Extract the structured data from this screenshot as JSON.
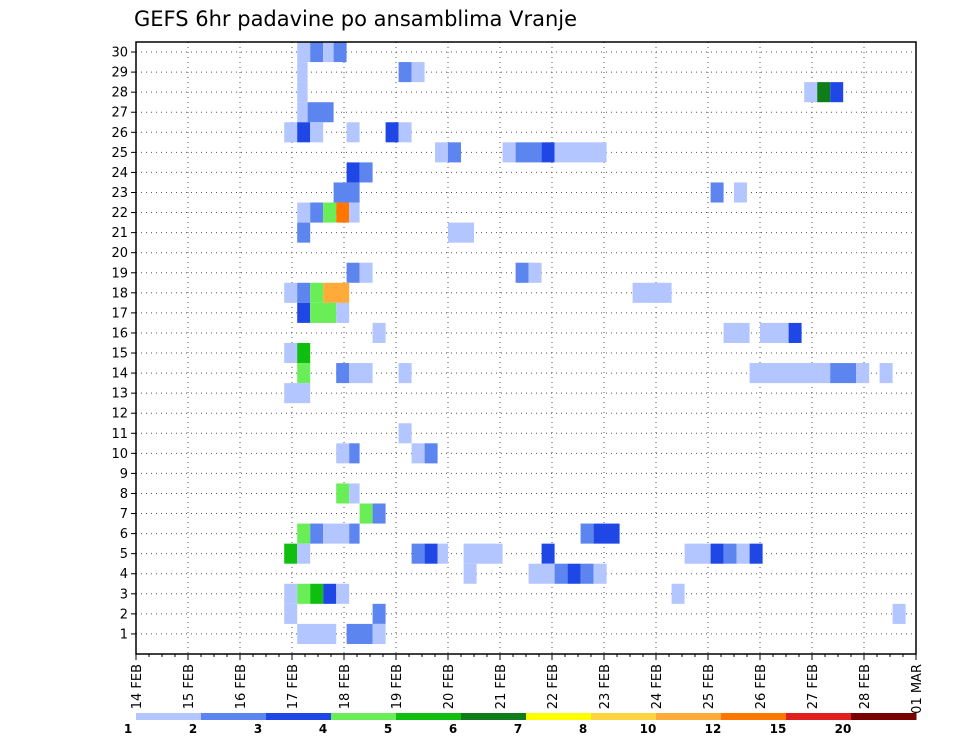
{
  "chart_data": {
    "type": "heatmap",
    "title": "GEFS 6hr padavine po ansamblima Vranje",
    "x_tick_labels": [
      "14 FEB",
      "15 FEB",
      "16 FEB",
      "17 FEB",
      "18 FEB",
      "19 FEB",
      "20 FEB",
      "21 FEB",
      "22 FEB",
      "23 FEB",
      "24 FEB",
      "25 FEB",
      "26 FEB",
      "27 FEB",
      "28 FEB",
      "01 MAR"
    ],
    "y_tick_labels": [
      "1",
      "2",
      "3",
      "4",
      "5",
      "6",
      "7",
      "8",
      "9",
      "10",
      "11",
      "12",
      "13",
      "14",
      "15",
      "16",
      "17",
      "18",
      "19",
      "20",
      "21",
      "22",
      "23",
      "24",
      "25",
      "26",
      "27",
      "28",
      "29",
      "30"
    ],
    "x_range_days": [
      0,
      15
    ],
    "time_step_hours": 6,
    "y_range": [
      0,
      30
    ],
    "grid": "dotted",
    "legend": {
      "position": "bottom",
      "labels": [
        "1",
        "2",
        "3",
        "4",
        "5",
        "6",
        "7",
        "8",
        "10",
        "12",
        "15",
        "20"
      ],
      "colors": [
        "#b3c6ff",
        "#5c85f0",
        "#1f47e6",
        "#6aee57",
        "#0fbe0f",
        "#0e7d1a",
        "#ffff00",
        "#ffd43f",
        "#ffab3a",
        "#ff7700",
        "#e21f1f",
        "#7a0000"
      ]
    },
    "cells": [
      {
        "y": 30,
        "x": [
          3.1,
          3.35
        ],
        "v": 1
      },
      {
        "y": 30,
        "x": [
          3.35,
          3.6
        ],
        "v": 2
      },
      {
        "y": 30,
        "x": [
          3.6,
          3.8
        ],
        "v": 1
      },
      {
        "y": 30,
        "x": [
          3.8,
          4.05
        ],
        "v": 2
      },
      {
        "y": 29,
        "x": [
          3.1,
          3.3
        ],
        "v": 1
      },
      {
        "y": 29,
        "x": [
          5.05,
          5.3
        ],
        "v": 2
      },
      {
        "y": 29,
        "x": [
          5.3,
          5.55
        ],
        "v": 1
      },
      {
        "y": 28,
        "x": [
          3.1,
          3.3
        ],
        "v": 1
      },
      {
        "y": 28,
        "x": [
          12.85,
          13.1
        ],
        "v": 1
      },
      {
        "y": 28,
        "x": [
          13.1,
          13.35
        ],
        "v": 6
      },
      {
        "y": 28,
        "x": [
          13.35,
          13.6
        ],
        "v": 3
      },
      {
        "y": 27,
        "x": [
          3.1,
          3.3
        ],
        "v": 1
      },
      {
        "y": 27,
        "x": [
          3.3,
          3.8
        ],
        "v": 2
      },
      {
        "y": 26,
        "x": [
          2.85,
          3.1
        ],
        "v": 1
      },
      {
        "y": 26,
        "x": [
          3.1,
          3.35
        ],
        "v": 3
      },
      {
        "y": 26,
        "x": [
          3.35,
          3.6
        ],
        "v": 1
      },
      {
        "y": 26,
        "x": [
          4.05,
          4.3
        ],
        "v": 1
      },
      {
        "y": 26,
        "x": [
          4.8,
          5.05
        ],
        "v": 3
      },
      {
        "y": 26,
        "x": [
          5.05,
          5.3
        ],
        "v": 1
      },
      {
        "y": 25,
        "x": [
          5.75,
          6.0
        ],
        "v": 1
      },
      {
        "y": 25,
        "x": [
          6.0,
          6.25
        ],
        "v": 2
      },
      {
        "y": 25,
        "x": [
          7.05,
          7.3
        ],
        "v": 1
      },
      {
        "y": 25,
        "x": [
          7.3,
          7.8
        ],
        "v": 2
      },
      {
        "y": 25,
        "x": [
          7.8,
          8.05
        ],
        "v": 3
      },
      {
        "y": 25,
        "x": [
          8.05,
          9.05
        ],
        "v": 1
      },
      {
        "y": 24,
        "x": [
          4.05,
          4.3
        ],
        "v": 3
      },
      {
        "y": 24,
        "x": [
          4.3,
          4.55
        ],
        "v": 2
      },
      {
        "y": 23,
        "x": [
          3.8,
          4.3
        ],
        "v": 2
      },
      {
        "y": 23,
        "x": [
          11.05,
          11.3
        ],
        "v": 2
      },
      {
        "y": 23,
        "x": [
          11.5,
          11.75
        ],
        "v": 1
      },
      {
        "y": 22,
        "x": [
          3.1,
          3.35
        ],
        "v": 1
      },
      {
        "y": 22,
        "x": [
          3.35,
          3.6
        ],
        "v": 2
      },
      {
        "y": 22,
        "x": [
          3.6,
          3.85
        ],
        "v": 4
      },
      {
        "y": 22,
        "x": [
          3.85,
          4.1
        ],
        "v": 12
      },
      {
        "y": 22,
        "x": [
          4.1,
          4.3
        ],
        "v": 1
      },
      {
        "y": 21,
        "x": [
          3.1,
          3.35
        ],
        "v": 2
      },
      {
        "y": 21,
        "x": [
          6.0,
          6.5
        ],
        "v": 1
      },
      {
        "y": 19,
        "x": [
          4.05,
          4.3
        ],
        "v": 2
      },
      {
        "y": 19,
        "x": [
          4.3,
          4.55
        ],
        "v": 1
      },
      {
        "y": 19,
        "x": [
          7.3,
          7.55
        ],
        "v": 2
      },
      {
        "y": 19,
        "x": [
          7.55,
          7.8
        ],
        "v": 1
      },
      {
        "y": 18,
        "x": [
          2.85,
          3.1
        ],
        "v": 1
      },
      {
        "y": 18,
        "x": [
          3.1,
          3.35
        ],
        "v": 2
      },
      {
        "y": 18,
        "x": [
          3.35,
          3.6
        ],
        "v": 4
      },
      {
        "y": 18,
        "x": [
          3.6,
          4.1
        ],
        "v": 10
      },
      {
        "y": 18,
        "x": [
          9.55,
          10.3
        ],
        "v": 1
      },
      {
        "y": 17,
        "x": [
          3.1,
          3.35
        ],
        "v": 3
      },
      {
        "y": 17,
        "x": [
          3.35,
          3.85
        ],
        "v": 4
      },
      {
        "y": 17,
        "x": [
          3.85,
          4.1
        ],
        "v": 1
      },
      {
        "y": 16,
        "x": [
          4.55,
          4.8
        ],
        "v": 1
      },
      {
        "y": 16,
        "x": [
          11.3,
          11.8
        ],
        "v": 1
      },
      {
        "y": 16,
        "x": [
          12.0,
          12.55
        ],
        "v": 1
      },
      {
        "y": 16,
        "x": [
          12.55,
          12.8
        ],
        "v": 3
      },
      {
        "y": 15,
        "x": [
          2.85,
          3.1
        ],
        "v": 1
      },
      {
        "y": 15,
        "x": [
          3.1,
          3.35
        ],
        "v": 5
      },
      {
        "y": 14,
        "x": [
          3.1,
          3.35
        ],
        "v": 4
      },
      {
        "y": 14,
        "x": [
          3.85,
          4.1
        ],
        "v": 2
      },
      {
        "y": 14,
        "x": [
          4.1,
          4.55
        ],
        "v": 1
      },
      {
        "y": 14,
        "x": [
          5.05,
          5.3
        ],
        "v": 1
      },
      {
        "y": 14,
        "x": [
          11.8,
          13.35
        ],
        "v": 1
      },
      {
        "y": 14,
        "x": [
          13.35,
          13.85
        ],
        "v": 2
      },
      {
        "y": 14,
        "x": [
          13.85,
          14.1
        ],
        "v": 1
      },
      {
        "y": 14,
        "x": [
          14.3,
          14.55
        ],
        "v": 1
      },
      {
        "y": 13,
        "x": [
          2.85,
          3.35
        ],
        "v": 1
      },
      {
        "y": 11,
        "x": [
          5.05,
          5.3
        ],
        "v": 1
      },
      {
        "y": 10,
        "x": [
          3.85,
          4.1
        ],
        "v": 1
      },
      {
        "y": 10,
        "x": [
          4.1,
          4.3
        ],
        "v": 2
      },
      {
        "y": 10,
        "x": [
          5.3,
          5.55
        ],
        "v": 1
      },
      {
        "y": 10,
        "x": [
          5.55,
          5.8
        ],
        "v": 2
      },
      {
        "y": 8,
        "x": [
          3.85,
          4.1
        ],
        "v": 4
      },
      {
        "y": 8,
        "x": [
          4.1,
          4.3
        ],
        "v": 1
      },
      {
        "y": 7,
        "x": [
          4.3,
          4.55
        ],
        "v": 4
      },
      {
        "y": 7,
        "x": [
          4.55,
          4.8
        ],
        "v": 2
      },
      {
        "y": 6,
        "x": [
          3.1,
          3.35
        ],
        "v": 4
      },
      {
        "y": 6,
        "x": [
          3.35,
          3.6
        ],
        "v": 2
      },
      {
        "y": 6,
        "x": [
          3.6,
          4.1
        ],
        "v": 1
      },
      {
        "y": 6,
        "x": [
          4.1,
          4.3
        ],
        "v": 2
      },
      {
        "y": 6,
        "x": [
          8.55,
          8.8
        ],
        "v": 2
      },
      {
        "y": 6,
        "x": [
          8.8,
          9.3
        ],
        "v": 3
      },
      {
        "y": 5,
        "x": [
          2.85,
          3.1
        ],
        "v": 5
      },
      {
        "y": 5,
        "x": [
          3.1,
          3.35
        ],
        "v": 1
      },
      {
        "y": 5,
        "x": [
          5.3,
          5.55
        ],
        "v": 2
      },
      {
        "y": 5,
        "x": [
          5.55,
          5.8
        ],
        "v": 3
      },
      {
        "y": 5,
        "x": [
          5.8,
          6.0
        ],
        "v": 1
      },
      {
        "y": 5,
        "x": [
          6.3,
          7.05
        ],
        "v": 1
      },
      {
        "y": 5,
        "x": [
          7.8,
          8.05
        ],
        "v": 3
      },
      {
        "y": 5,
        "x": [
          10.55,
          11.05
        ],
        "v": 1
      },
      {
        "y": 5,
        "x": [
          11.05,
          11.3
        ],
        "v": 3
      },
      {
        "y": 5,
        "x": [
          11.3,
          11.55
        ],
        "v": 2
      },
      {
        "y": 5,
        "x": [
          11.55,
          11.8
        ],
        "v": 1
      },
      {
        "y": 5,
        "x": [
          11.8,
          12.05
        ],
        "v": 3
      },
      {
        "y": 4,
        "x": [
          6.3,
          6.55
        ],
        "v": 1
      },
      {
        "y": 4,
        "x": [
          7.55,
          8.05
        ],
        "v": 1
      },
      {
        "y": 4,
        "x": [
          8.05,
          8.3
        ],
        "v": 2
      },
      {
        "y": 4,
        "x": [
          8.3,
          8.55
        ],
        "v": 3
      },
      {
        "y": 4,
        "x": [
          8.55,
          8.8
        ],
        "v": 2
      },
      {
        "y": 4,
        "x": [
          8.8,
          9.05
        ],
        "v": 1
      },
      {
        "y": 3,
        "x": [
          2.85,
          3.1
        ],
        "v": 1
      },
      {
        "y": 3,
        "x": [
          3.1,
          3.35
        ],
        "v": 4
      },
      {
        "y": 3,
        "x": [
          3.35,
          3.6
        ],
        "v": 5
      },
      {
        "y": 3,
        "x": [
          3.6,
          3.85
        ],
        "v": 3
      },
      {
        "y": 3,
        "x": [
          3.85,
          4.1
        ],
        "v": 1
      },
      {
        "y": 3,
        "x": [
          10.3,
          10.55
        ],
        "v": 1
      },
      {
        "y": 2,
        "x": [
          2.85,
          3.1
        ],
        "v": 1
      },
      {
        "y": 2,
        "x": [
          4.55,
          4.8
        ],
        "v": 2
      },
      {
        "y": 2,
        "x": [
          14.55,
          14.8
        ],
        "v": 1
      },
      {
        "y": 1,
        "x": [
          3.1,
          3.85
        ],
        "v": 1
      },
      {
        "y": 1,
        "x": [
          4.05,
          4.55
        ],
        "v": 2
      },
      {
        "y": 1,
        "x": [
          4.55,
          4.8
        ],
        "v": 1
      }
    ]
  }
}
